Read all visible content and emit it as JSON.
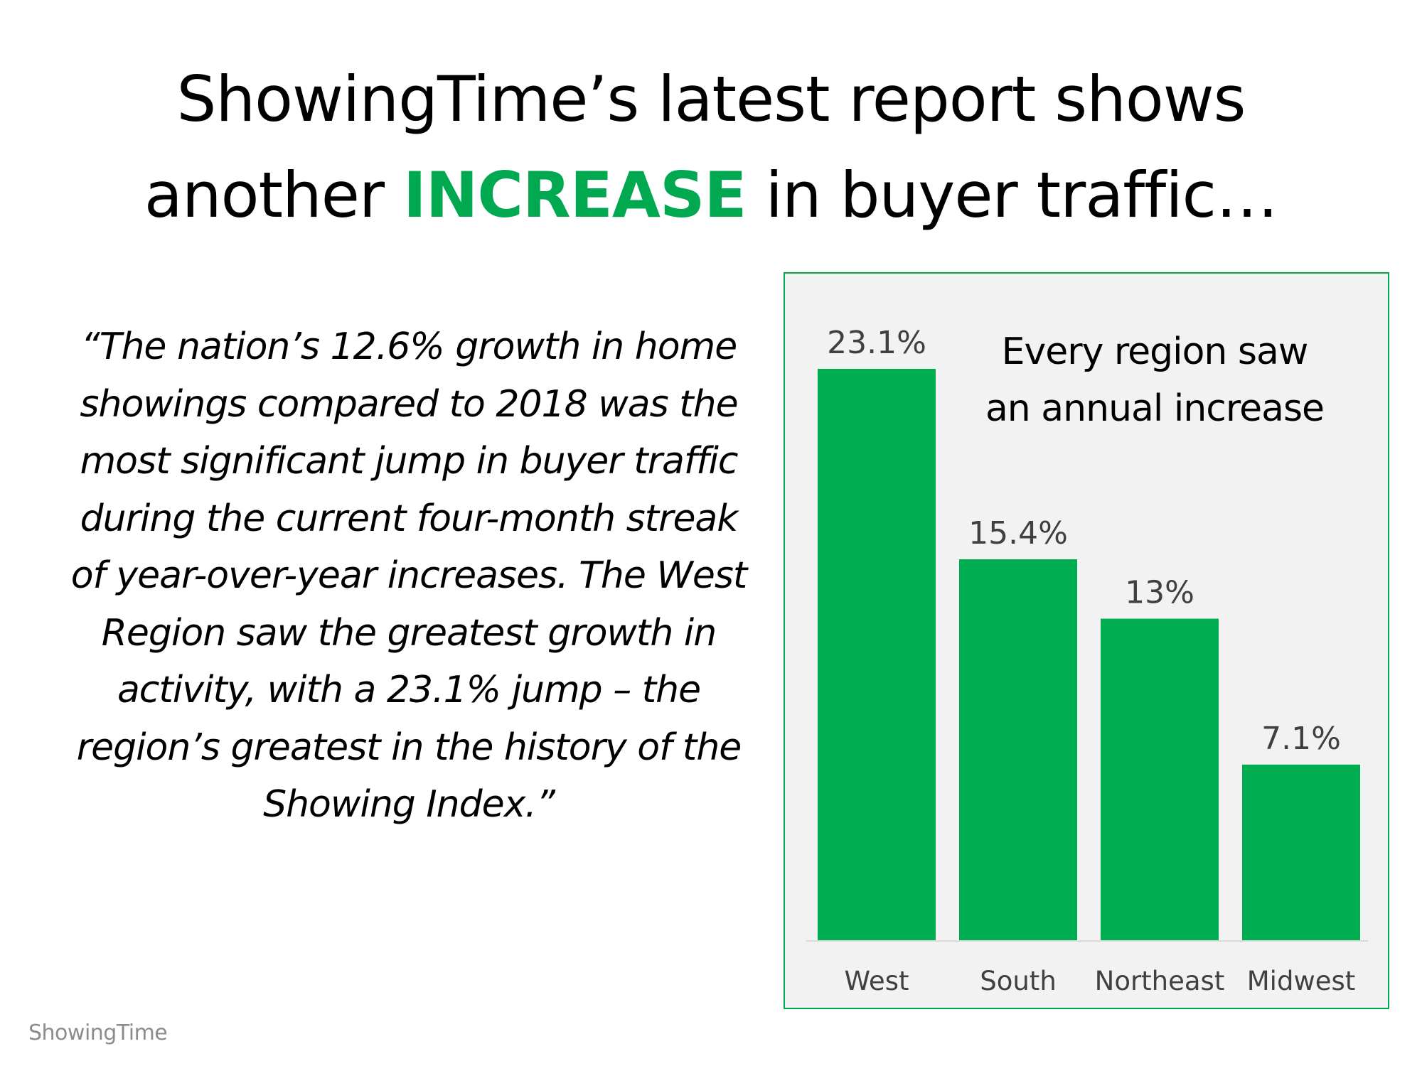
{
  "headline": {
    "line1": "ShowingTime’s latest report shows",
    "line2_before": "another ",
    "line2_accent": "INCREASE",
    "line2_after": " in buyer traffic…"
  },
  "quote": "“The nation’s 12.6% growth in home showings compared to 2018 was the most significant jump in buyer traffic during the current four-month streak of year-over-year increases. The West Region saw the greatest growth in activity, with a 23.1% jump – the region’s greatest in the history of the Showing Index.”",
  "chart_note": {
    "line1": "Every region saw",
    "line2": "an annual increase"
  },
  "brand": "ShowingTime",
  "colors": {
    "accent": "#00a94f",
    "bar": "#00ad50",
    "panel_bg": "#f2f2f2",
    "label_text": "#404040"
  },
  "chart_data": {
    "type": "bar",
    "categories": [
      "West",
      "South",
      "Northeast",
      "Midwest"
    ],
    "values": [
      23.1,
      15.4,
      13,
      7.1
    ],
    "data_labels": [
      "23.1%",
      "15.4%",
      "13%",
      "7.1%"
    ],
    "title": "",
    "xlabel": "",
    "ylabel": "",
    "ylim": [
      0,
      23.1
    ],
    "grid": false,
    "legend": "none"
  }
}
